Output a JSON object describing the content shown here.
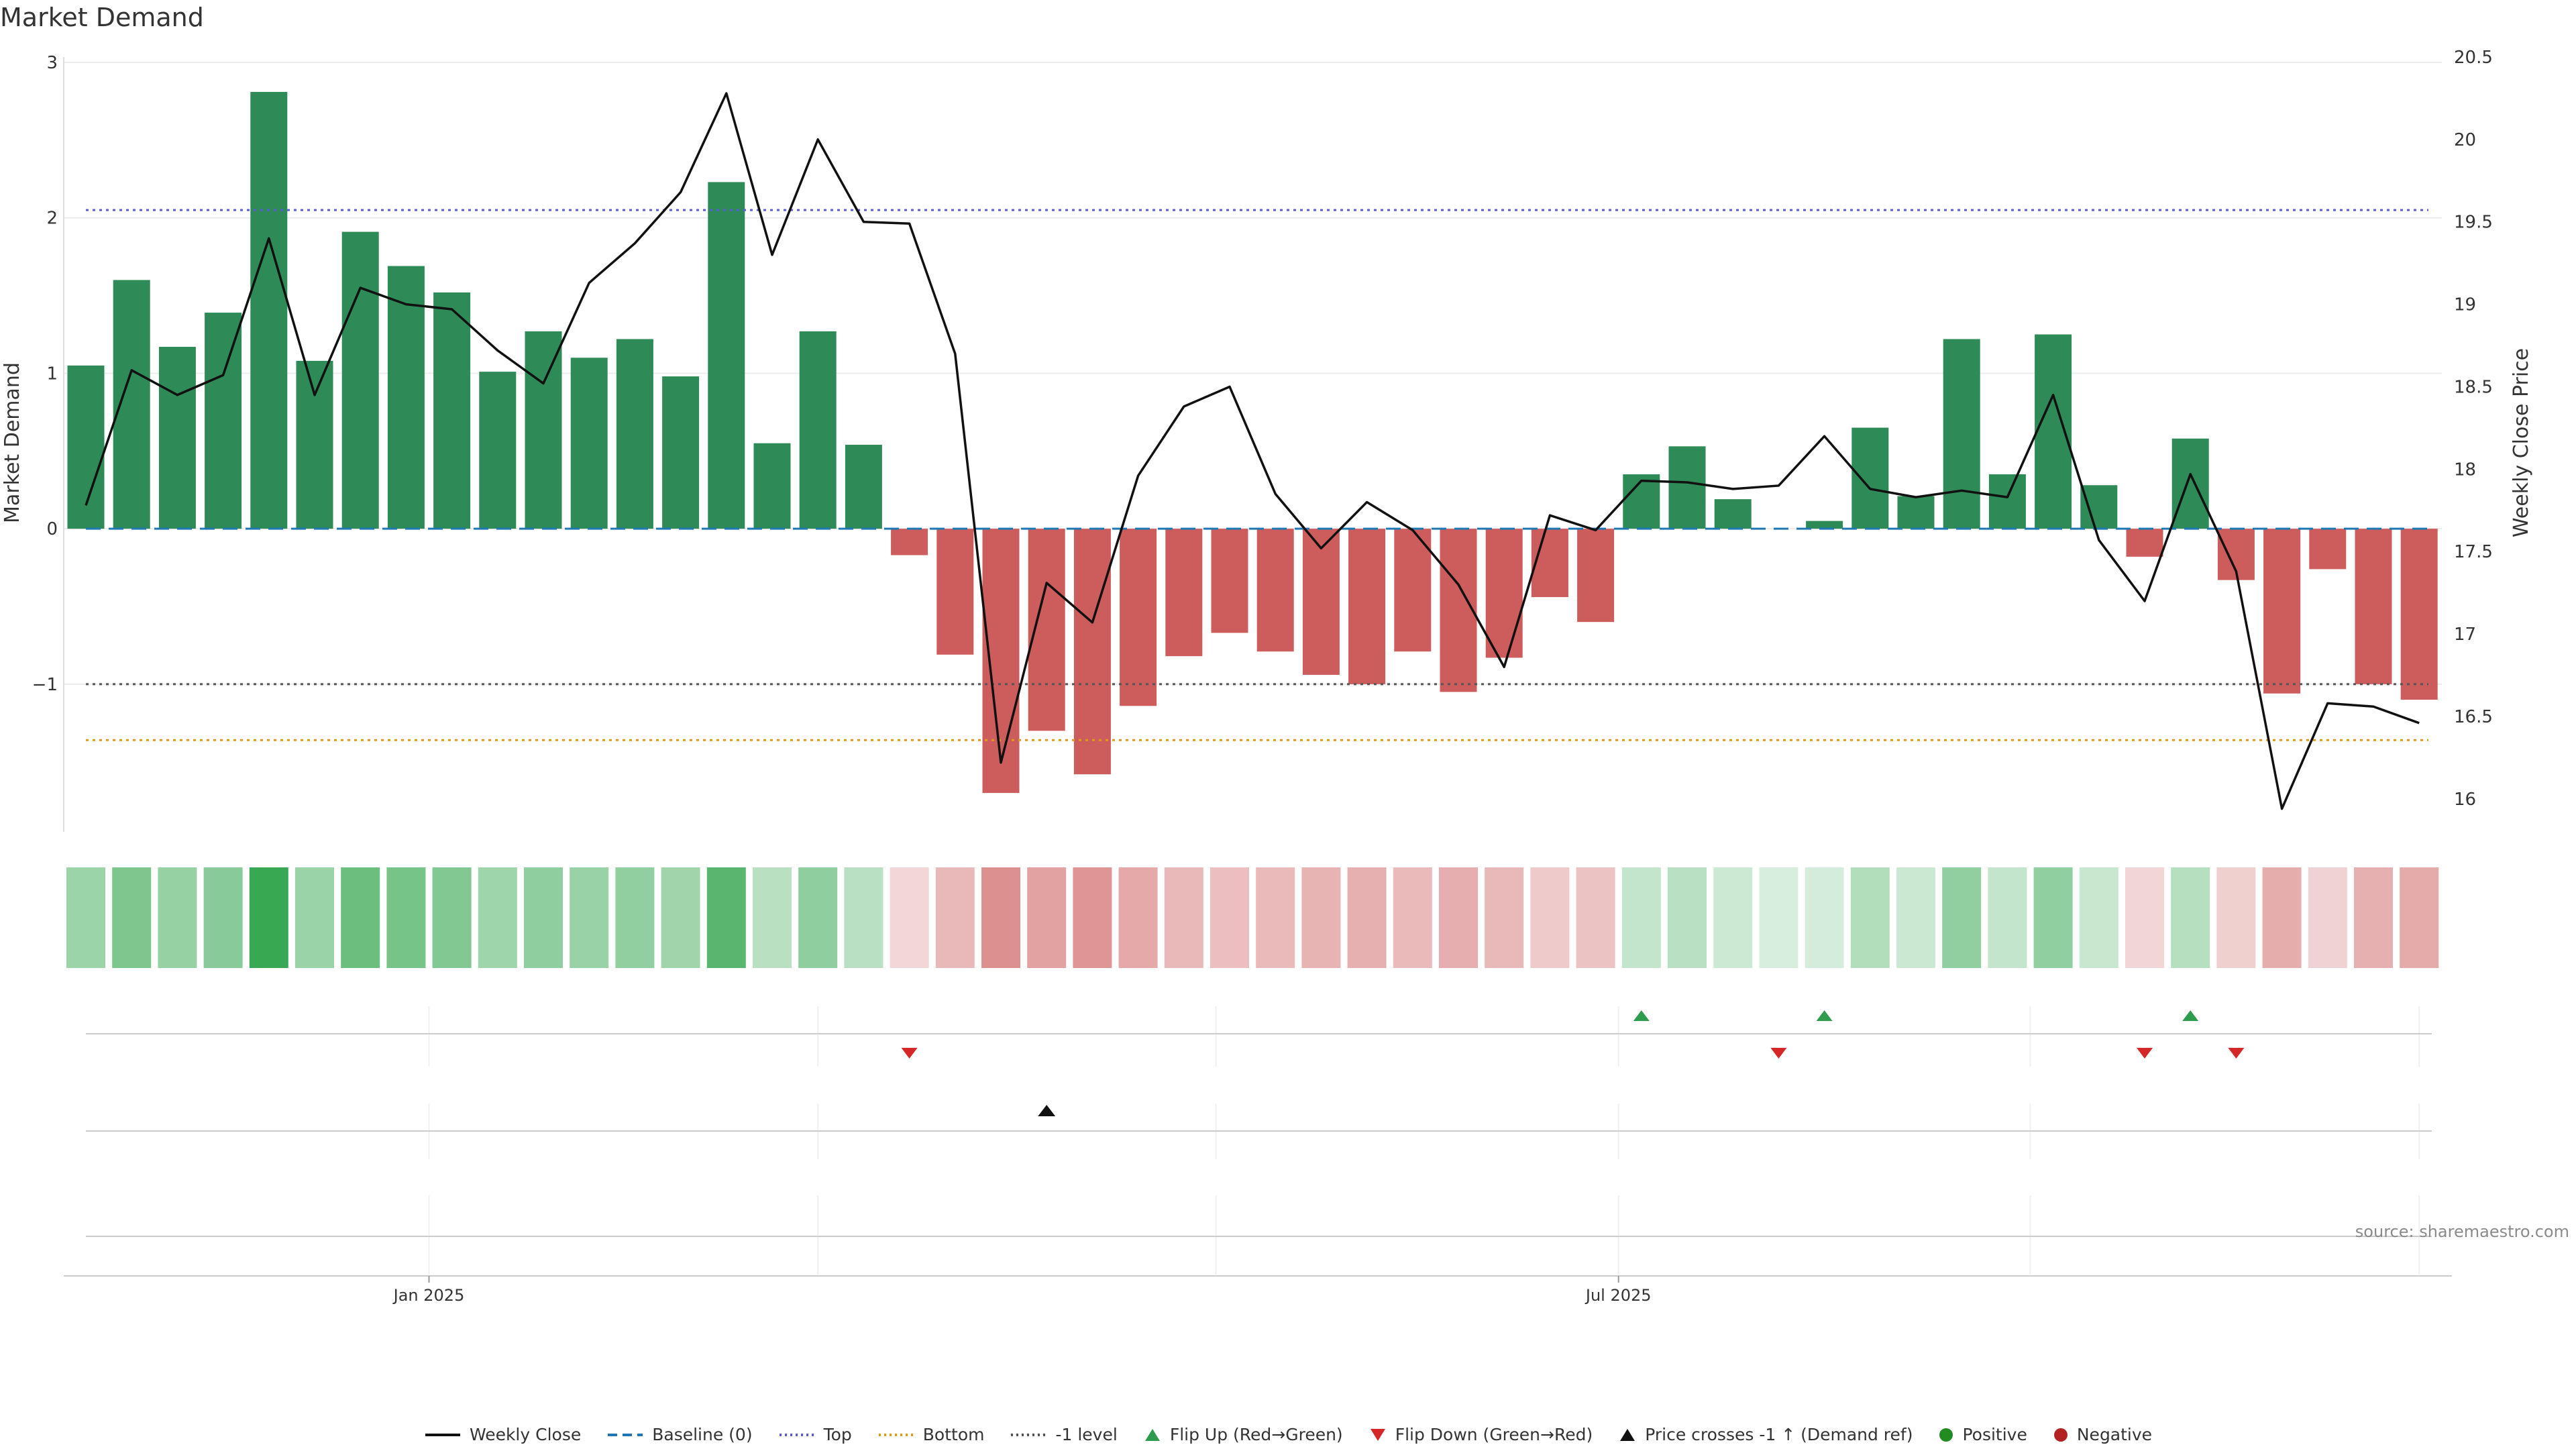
{
  "title": "Market Demand",
  "source": "source: sharemaestro.com",
  "chart_data": {
    "type": "bar",
    "title": "Market Demand",
    "ylabel_left": "Market Demand",
    "ylabel_right": "Weekly Close Price",
    "ylim_left": [
      -1.95,
      3
    ],
    "ylim_right": [
      15.8,
      20.5
    ],
    "left_ticks": [
      3,
      2,
      1,
      0,
      -1
    ],
    "left_tick_labels": [
      "3",
      "2",
      "1",
      "0",
      "−1"
    ],
    "right_ticks": [
      20.5,
      20,
      19.5,
      19,
      18.5,
      18,
      17.5,
      17,
      16.5,
      16
    ],
    "right_tick_labels": [
      "20.5",
      "20",
      "19.5",
      "19",
      "18.5",
      "18",
      "17.5",
      "17",
      "16.5",
      "16"
    ],
    "x_tick_labels": [
      {
        "label": "Jan 2025",
        "index": 7.5
      },
      {
        "label": "Jul 2025",
        "index": 33.5
      }
    ],
    "demand": [
      1.05,
      1.6,
      1.17,
      1.39,
      2.81,
      1.08,
      1.91,
      1.69,
      1.52,
      1.01,
      1.27,
      1.1,
      1.22,
      0.98,
      2.23,
      0.55,
      1.27,
      0.54,
      -0.17,
      -0.81,
      -1.7,
      -1.3,
      -1.58,
      -1.14,
      -0.82,
      -0.67,
      -0.79,
      -0.94,
      -1.0,
      -0.79,
      -1.05,
      -0.83,
      -0.44,
      -0.6,
      0.35,
      0.53,
      0.19,
      0.0,
      0.05,
      0.65,
      0.21,
      1.22,
      0.35,
      1.25,
      0.28,
      -0.18,
      0.58,
      -0.33,
      -1.06,
      -0.26,
      -1.0,
      -1.1
    ],
    "weekly_close": [
      17.78,
      18.6,
      18.45,
      18.57,
      19.4,
      18.45,
      19.1,
      19.0,
      18.97,
      18.72,
      18.52,
      19.13,
      19.37,
      19.68,
      20.28,
      19.3,
      20.0,
      19.5,
      19.49,
      18.7,
      16.22,
      17.31,
      17.07,
      17.96,
      18.38,
      18.5,
      17.85,
      17.52,
      17.8,
      17.63,
      17.3,
      16.8,
      17.72,
      17.63,
      17.93,
      17.92,
      17.88,
      17.9,
      18.2,
      17.88,
      17.83,
      17.87,
      17.83,
      18.45,
      17.57,
      17.2,
      17.97,
      17.38,
      15.94,
      16.58,
      16.56,
      16.46
    ],
    "reference_lines": [
      {
        "name": "Baseline (0)",
        "value": 0,
        "color": "#1f77b4"
      },
      {
        "name": "Top",
        "value": 2.05,
        "color": "#5b5bd6"
      },
      {
        "name": "Bottom",
        "value": -1.36,
        "color": "#e09a1a"
      },
      {
        "name": "-1 level",
        "value": -1,
        "color": "#555555"
      }
    ],
    "flip_up_indices": [
      34,
      38,
      46
    ],
    "flip_down_indices": [
      18,
      37,
      45,
      47
    ],
    "price_cross_indices": [
      21
    ],
    "colors": {
      "positive": "#2e8b57",
      "negative": "#cd5c5c",
      "price": "#111111",
      "flip_up": "#2e9b4e",
      "flip_down": "#d62728",
      "dot_pos": "#228b22",
      "dot_neg": "#b22222"
    }
  },
  "legend": [
    {
      "label": "Weekly Close",
      "icon": "solid-line"
    },
    {
      "label": "Baseline (0)",
      "icon": "dashed-line"
    },
    {
      "label": "Top",
      "icon": "dotted-line-blue"
    },
    {
      "label": "Bottom",
      "icon": "dotted-line-orange"
    },
    {
      "label": "-1 level",
      "icon": "dotted-line-gray"
    },
    {
      "label": "Flip Up (Red→Green)",
      "icon": "triangle-up-green"
    },
    {
      "label": "Flip Down (Green→Red)",
      "icon": "triangle-down-red"
    },
    {
      "label": "Price crosses -1 ↑ (Demand ref)",
      "icon": "triangle-up-black"
    },
    {
      "label": "Positive",
      "icon": "dot-green"
    },
    {
      "label": "Negative",
      "icon": "dot-red"
    }
  ]
}
